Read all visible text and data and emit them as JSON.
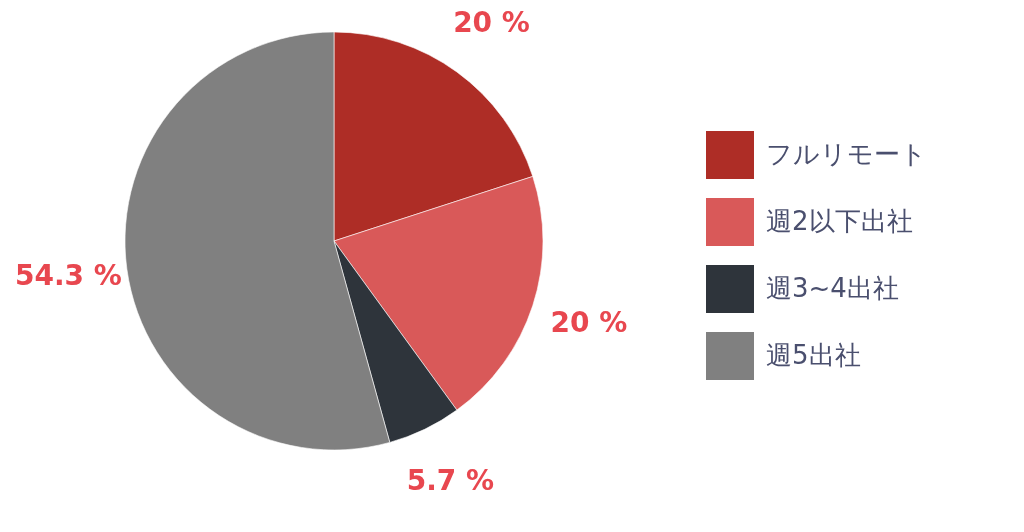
{
  "chart_data": {
    "type": "pie",
    "categories": [
      "フルリモート",
      "週2以下出社",
      "週3~4出社",
      "週5出社"
    ],
    "values": [
      20,
      20,
      5.7,
      54.3
    ],
    "colors": [
      "#ae2d26",
      "#d95959",
      "#2e343b",
      "#808080"
    ],
    "value_labels": [
      "20 %",
      "20 %",
      "5.7 %",
      "54.3 %"
    ],
    "legend": "right"
  }
}
